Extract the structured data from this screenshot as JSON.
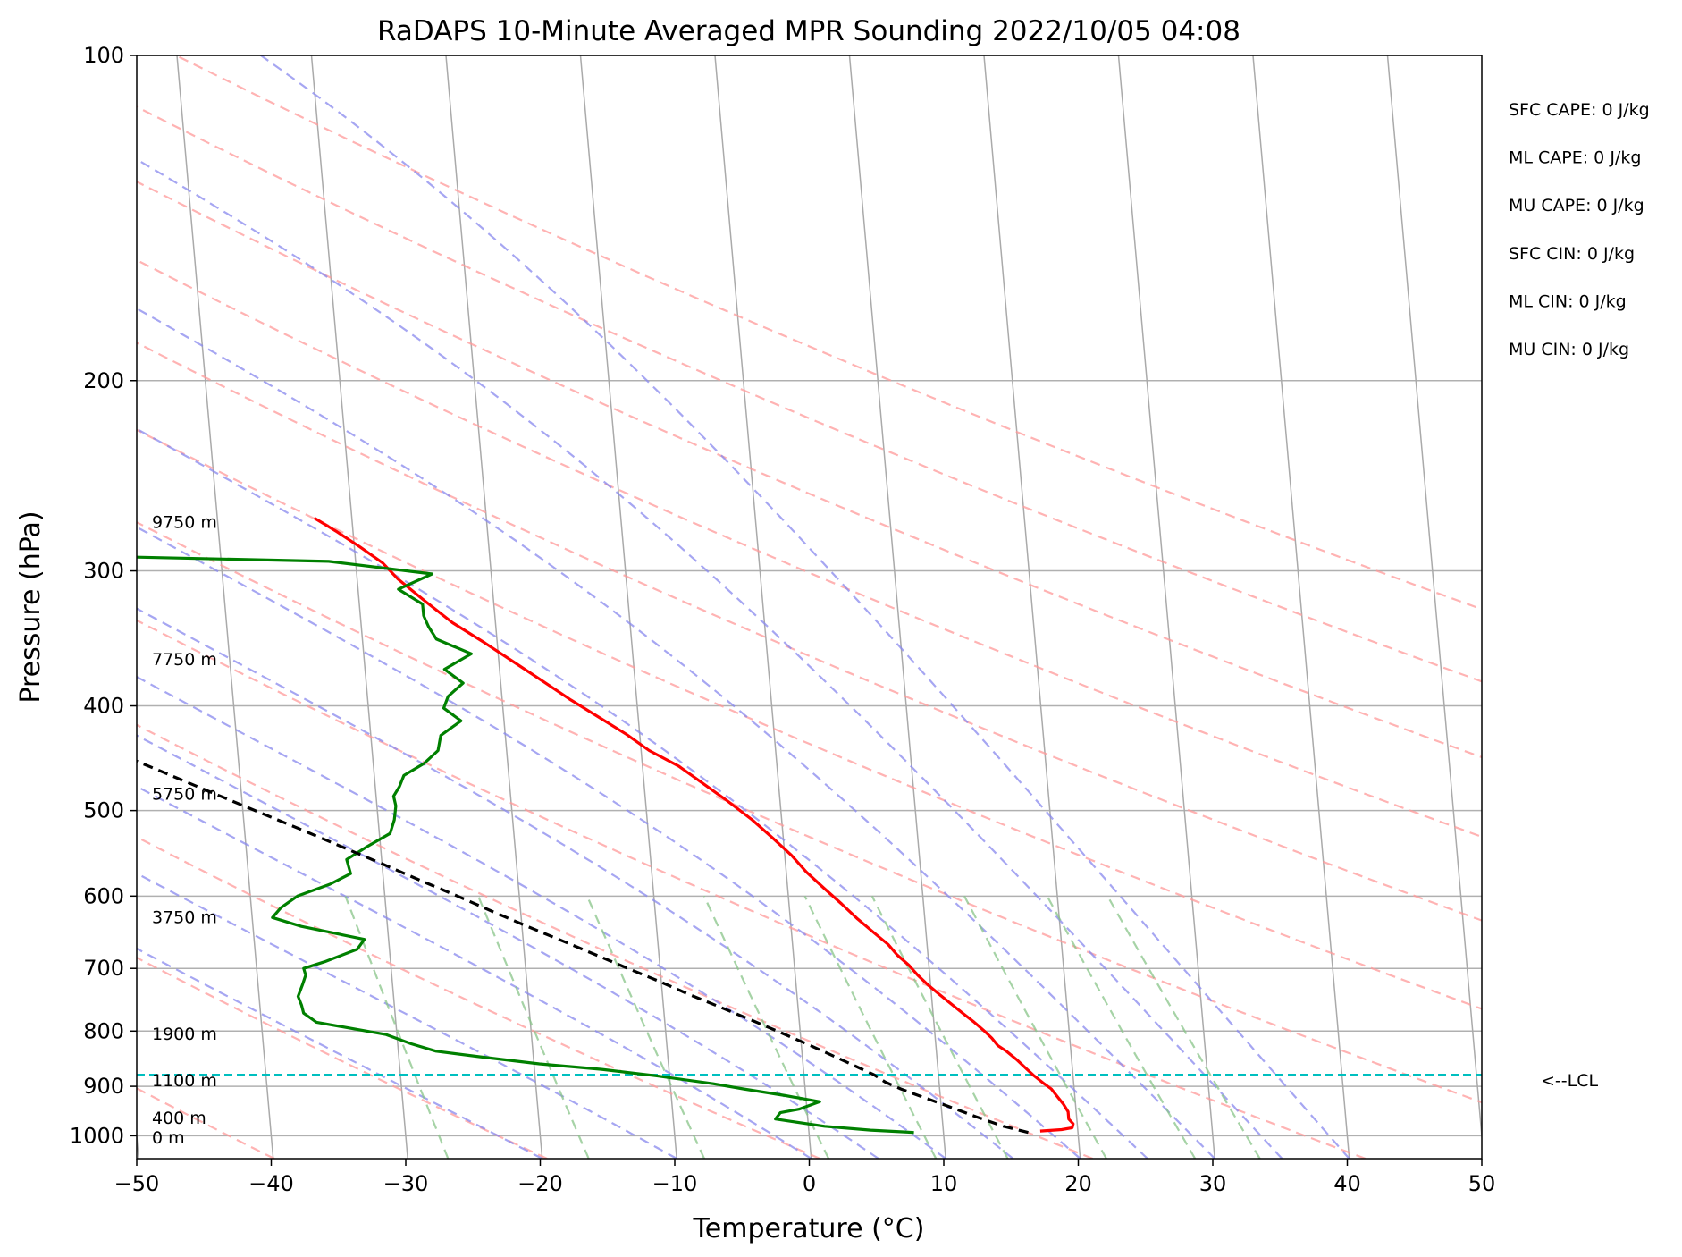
{
  "chart_data": {
    "type": "line",
    "title": "RaDAPS 10-Minute Averaged MPR Sounding 2022/10/05 04:08",
    "xlabel": "Temperature (°C)",
    "ylabel": "Pressure (hPa)",
    "xlim": [
      -50,
      50
    ],
    "ylim": [
      1050,
      100
    ],
    "y_scale": "log",
    "skew_t": true,
    "grid": true,
    "x_ticks": [
      -50,
      -40,
      -30,
      -20,
      -10,
      0,
      10,
      20,
      30,
      40,
      50
    ],
    "x_tick_labels": [
      "−50",
      "−40",
      "−30",
      "−20",
      "−10",
      "0",
      "10",
      "20",
      "30",
      "40",
      "50"
    ],
    "y_ticks": [
      100,
      200,
      300,
      400,
      500,
      600,
      700,
      800,
      900,
      1000
    ],
    "y_tick_labels": [
      "100",
      "200",
      "300",
      "400",
      "500",
      "600",
      "700",
      "800",
      "900",
      "1000"
    ],
    "series": [
      {
        "key": "temperature",
        "color": "#ff0000",
        "style": "solid",
        "points": [
          [
            990,
            17.2
          ],
          [
            987,
            18.8
          ],
          [
            983,
            19.6
          ],
          [
            975,
            19.7
          ],
          [
            965,
            19.4
          ],
          [
            950,
            19.4
          ],
          [
            935,
            19.1
          ],
          [
            920,
            18.7
          ],
          [
            905,
            18.3
          ],
          [
            895,
            17.8
          ],
          [
            880,
            17.1
          ],
          [
            865,
            16.5
          ],
          [
            850,
            15.9
          ],
          [
            835,
            15.2
          ],
          [
            825,
            14.6
          ],
          [
            812,
            14.2
          ],
          [
            800,
            13.7
          ],
          [
            785,
            13.0
          ],
          [
            770,
            12.2
          ],
          [
            755,
            11.4
          ],
          [
            740,
            10.6
          ],
          [
            725,
            9.8
          ],
          [
            710,
            9.1
          ],
          [
            695,
            8.5
          ],
          [
            680,
            7.7
          ],
          [
            665,
            7.1
          ],
          [
            650,
            6.2
          ],
          [
            630,
            5.0
          ],
          [
            610,
            3.9
          ],
          [
            590,
            2.7
          ],
          [
            570,
            1.5
          ],
          [
            550,
            0.5
          ],
          [
            530,
            -0.8
          ],
          [
            510,
            -2.2
          ],
          [
            490,
            -3.9
          ],
          [
            470,
            -5.8
          ],
          [
            455,
            -7.3
          ],
          [
            440,
            -9.4
          ],
          [
            425,
            -11.0
          ],
          [
            410,
            -12.9
          ],
          [
            395,
            -14.9
          ],
          [
            380,
            -16.8
          ],
          [
            365,
            -18.8
          ],
          [
            350,
            -20.9
          ],
          [
            335,
            -23.2
          ],
          [
            320,
            -25.1
          ],
          [
            305,
            -27.0
          ],
          [
            295,
            -28.0
          ],
          [
            285,
            -29.6
          ],
          [
            276,
            -31.2
          ],
          [
            268,
            -32.8
          ]
        ]
      },
      {
        "key": "dewpoint",
        "color": "#008000",
        "style": "solid",
        "points": [
          [
            993,
            7.8
          ],
          [
            988,
            4.6
          ],
          [
            980,
            1.2
          ],
          [
            970,
            -1.2
          ],
          [
            965,
            -2.4
          ],
          [
            952,
            -2.0
          ],
          [
            945,
            -0.6
          ],
          [
            930,
            1.0
          ],
          [
            918,
            -1.5
          ],
          [
            905,
            -4.6
          ],
          [
            895,
            -6.8
          ],
          [
            880,
            -11.0
          ],
          [
            868,
            -15.0
          ],
          [
            858,
            -19.6
          ],
          [
            845,
            -24.0
          ],
          [
            835,
            -27.2
          ],
          [
            822,
            -29.0
          ],
          [
            806,
            -30.8
          ],
          [
            785,
            -35.9
          ],
          [
            770,
            -36.8
          ],
          [
            757,
            -36.9
          ],
          [
            743,
            -37.1
          ],
          [
            725,
            -36.7
          ],
          [
            710,
            -36.4
          ],
          [
            700,
            -36.5
          ],
          [
            690,
            -34.9
          ],
          [
            672,
            -32.4
          ],
          [
            658,
            -31.8
          ],
          [
            640,
            -36.4
          ],
          [
            628,
            -38.5
          ],
          [
            615,
            -37.8
          ],
          [
            600,
            -36.5
          ],
          [
            585,
            -34.0
          ],
          [
            572,
            -32.4
          ],
          [
            555,
            -32.6
          ],
          [
            540,
            -31.0
          ],
          [
            525,
            -29.2
          ],
          [
            510,
            -28.8
          ],
          [
            495,
            -28.6
          ],
          [
            485,
            -28.7
          ],
          [
            475,
            -28.2
          ],
          [
            464,
            -27.8
          ],
          [
            452,
            -26.2
          ],
          [
            440,
            -25.1
          ],
          [
            426,
            -24.8
          ],
          [
            413,
            -23.2
          ],
          [
            402,
            -24.4
          ],
          [
            392,
            -24.0
          ],
          [
            381,
            -22.8
          ],
          [
            370,
            -24.1
          ],
          [
            358,
            -22.0
          ],
          [
            347,
            -24.5
          ],
          [
            338,
            -25.0
          ],
          [
            330,
            -25.3
          ],
          [
            322,
            -25.3
          ],
          [
            312,
            -27.0
          ],
          [
            302,
            -24.4
          ],
          [
            294,
            -32.0
          ],
          [
            291,
            -48.0
          ],
          [
            290,
            -55.0
          ],
          [
            290,
            -70.0
          ]
        ]
      },
      {
        "key": "parcel",
        "color": "#000000",
        "style": "dashed",
        "points": [
          [
            993,
            16.3
          ],
          [
            980,
            14.5
          ],
          [
            960,
            12.5
          ],
          [
            940,
            10.6
          ],
          [
            920,
            8.6
          ],
          [
            905,
            7.1
          ],
          [
            892,
            6.0
          ],
          [
            878,
            5.2
          ],
          [
            860,
            3.7
          ],
          [
            840,
            2.0
          ],
          [
            820,
            0.2
          ],
          [
            800,
            -1.7
          ],
          [
            780,
            -3.7
          ],
          [
            760,
            -5.8
          ],
          [
            740,
            -8.0
          ],
          [
            720,
            -10.1
          ],
          [
            700,
            -12.4
          ],
          [
            680,
            -14.7
          ],
          [
            660,
            -17.1
          ],
          [
            640,
            -19.6
          ],
          [
            620,
            -22.1
          ],
          [
            600,
            -24.6
          ],
          [
            580,
            -27.3
          ],
          [
            560,
            -30.0
          ],
          [
            540,
            -32.9
          ],
          [
            520,
            -35.9
          ],
          [
            500,
            -39.1
          ],
          [
            480,
            -42.4
          ],
          [
            460,
            -45.8
          ],
          [
            440,
            -49.4
          ],
          [
            420,
            -53.0
          ],
          [
            400,
            -56.9
          ],
          [
            380,
            -60.8
          ],
          [
            360,
            -64.9
          ],
          [
            340,
            -69.3
          ],
          [
            320,
            -73.7
          ],
          [
            300,
            -78.5
          ],
          [
            285,
            -82.0
          ],
          [
            268,
            -86.6
          ]
        ]
      }
    ],
    "lcl_pressure": 878,
    "lcl_color": "#00bfbf",
    "lcl_label": "<--LCL",
    "height_labels": [
      {
        "text": "9750 m",
        "p": 270
      },
      {
        "text": "7750 m",
        "p": 362
      },
      {
        "text": "5750 m",
        "p": 482
      },
      {
        "text": "3750 m",
        "p": 627
      },
      {
        "text": "1900 m",
        "p": 804
      },
      {
        "text": "1100 m",
        "p": 888
      },
      {
        "text": "400 m",
        "p": 962
      },
      {
        "text": "0 m",
        "p": 1003
      }
    ],
    "stats": [
      "SFC CAPE: 0 J/kg",
      "ML CAPE: 0 J/kg",
      "MU CAPE: 0 J/kg",
      "SFC CIN: 0 J/kg",
      "ML CIN: 0 J/kg",
      "MU CIN: 0 J/kg"
    ],
    "reference_lines": {
      "dry_adiabats_theta_K": [
        230,
        250,
        270,
        290,
        310,
        330,
        350,
        370,
        390,
        410,
        430,
        450
      ],
      "moist_adiabats_start_C": [
        -20,
        -10,
        0,
        5,
        10,
        15,
        20,
        25,
        30,
        35,
        40
      ],
      "mixing_ratio_g_per_kg": [
        0.4,
        1,
        2,
        4,
        7,
        10,
        16,
        24,
        32
      ],
      "isotherm_color": "#aaaaaa",
      "dry_adiabat_color": "#ff9999",
      "moist_adiabat_color": "#8888ee",
      "mixing_ratio_color": "#88c488"
    }
  }
}
